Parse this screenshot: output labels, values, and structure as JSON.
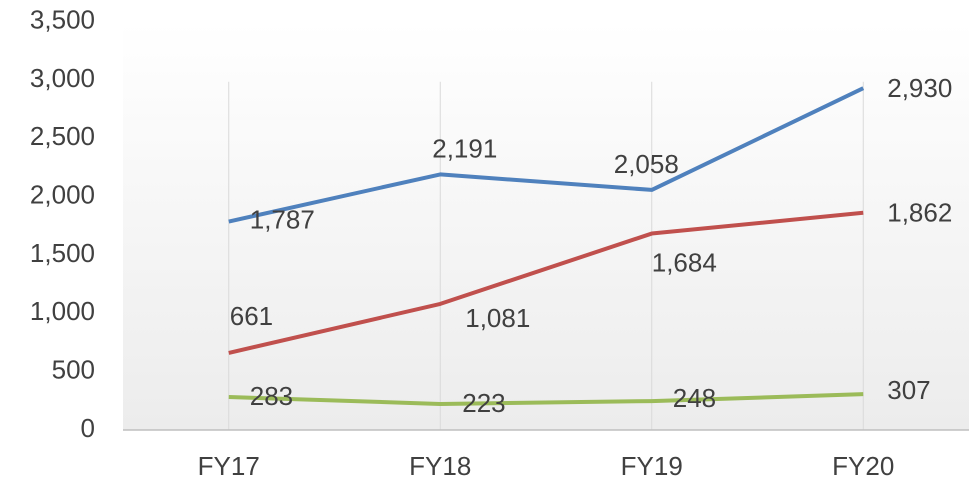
{
  "chart_data": {
    "type": "line",
    "categories": [
      "FY17",
      "FY18",
      "FY19",
      "FY20"
    ],
    "series": [
      {
        "color": "#4f81bd",
        "values": [
          1787,
          2191,
          2058,
          2930
        ],
        "value_labels": [
          "1,787",
          "2,191",
          "2,058",
          "2,930"
        ]
      },
      {
        "color": "#c0504d",
        "values": [
          661,
          1081,
          1684,
          1862
        ],
        "value_labels": [
          "661",
          "1,081",
          "1,684",
          "1,862"
        ]
      },
      {
        "color": "#9bbb59",
        "values": [
          283,
          223,
          248,
          307
        ],
        "value_labels": [
          "283",
          "223",
          "248",
          "307"
        ]
      }
    ],
    "ylim": [
      0,
      3500
    ],
    "yticks": [
      0,
      {
        "value": 500,
        "label": "500"
      },
      {
        "value": 1000,
        "label": "1,000"
      },
      {
        "value": 1500,
        "label": "1,500"
      },
      {
        "value": 2000,
        "label": "2,000"
      },
      {
        "value": 2500,
        "label": "2,500"
      },
      {
        "value": 3000,
        "label": "3,000"
      },
      {
        "value": 3500,
        "label": "3,500"
      }
    ]
  }
}
